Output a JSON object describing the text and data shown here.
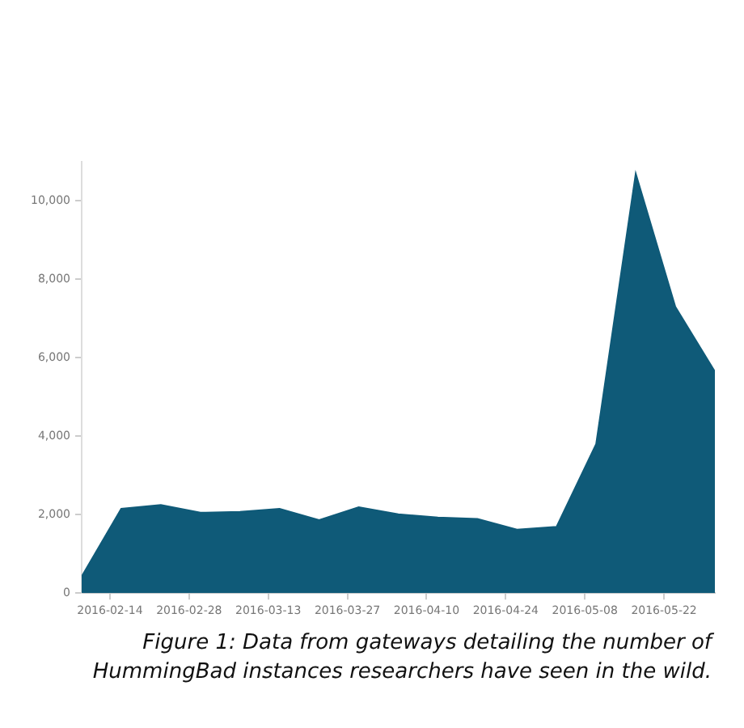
{
  "chart_data": {
    "type": "area",
    "x": [
      "2016-02-09",
      "2016-02-16",
      "2016-02-23",
      "2016-03-01",
      "2016-03-08",
      "2016-03-15",
      "2016-03-22",
      "2016-03-29",
      "2016-04-05",
      "2016-04-12",
      "2016-04-19",
      "2016-04-26",
      "2016-05-03",
      "2016-05-10",
      "2016-05-17",
      "2016-05-24",
      "2016-05-31"
    ],
    "series": [
      {
        "color": "#0f5a78",
        "values": [
          420,
          2150,
          2250,
          2050,
          2070,
          2150,
          1860,
          2190,
          2010,
          1930,
          1890,
          1620,
          1690,
          3800,
          10700,
          7300,
          5650
        ]
      }
    ],
    "xlim": [
      "2016-02-09",
      "2016-05-31"
    ],
    "xticks": [
      "2016-02-14",
      "2016-02-28",
      "2016-03-13",
      "2016-03-27",
      "2016-04-10",
      "2016-04-24",
      "2016-05-08",
      "2016-05-22"
    ],
    "ylim": [
      0,
      11000
    ],
    "yticks": [
      {
        "value": 0,
        "label": "0"
      },
      {
        "value": 2000,
        "label": "2,000"
      },
      {
        "value": 4000,
        "label": "4,000"
      },
      {
        "value": 6000,
        "label": "6,000"
      },
      {
        "value": 8000,
        "label": "8,000"
      },
      {
        "value": 10000,
        "label": "10,000"
      }
    ],
    "grid": false,
    "legend": false,
    "annotations": [
      "Figure 1: Data from gateways detailing the number of HummingBad instances researchers have seen in the wild."
    ]
  }
}
